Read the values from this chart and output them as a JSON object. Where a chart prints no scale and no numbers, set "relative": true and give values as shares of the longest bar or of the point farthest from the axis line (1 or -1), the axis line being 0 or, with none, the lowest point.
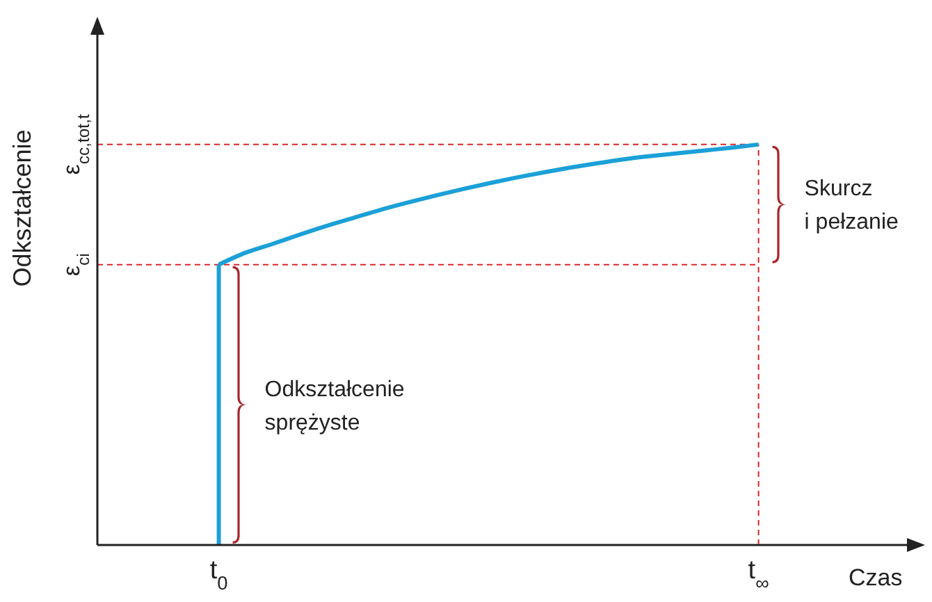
{
  "chart_data": {
    "type": "line",
    "relative": true,
    "xlabel": "Czas",
    "ylabel": "Odkształcenie",
    "categories": [
      null,
      null,
      null,
      null,
      "t$_{0}$",
      null,
      null,
      null,
      null,
      null,
      null,
      null,
      null,
      null,
      null,
      null,
      null,
      null,
      null,
      null,
      null,
      null,
      null,
      null,
      "t$_{∞}$",
      null,
      null,
      null,
      null,
      null
    ],
    "series": [
      {
        "color": "#1ba0d8",
        "x": [
          "t$_{0}$",
          "t$_{0}$"
        ],
        "values": [
          0,
          0.7
        ]
      },
      {
        "color": "#1ba0d8",
        "values": [
          null,
          null,
          null,
          null,
          0.7,
          0.73,
          0.752,
          0.775,
          0.797,
          0.817,
          0.837,
          0.855,
          0.872,
          0.888,
          0.903,
          0.917,
          0.93,
          0.942,
          0.953,
          0.963,
          0.971,
          0.978,
          0.985,
          0.992,
          1,
          null,
          null,
          null,
          null,
          null
        ]
      }
    ],
    "ref_lines": [
      {
        "axis": "y",
        "value": 0.7,
        "label": "ε$_{ci}$",
        "color": "#d9262c",
        "line_style": "dashed"
      },
      {
        "axis": "y",
        "value": 1,
        "label": "ε$_{cc,tot,t}$",
        "color": "#d9262c",
        "line_style": "dashed"
      },
      {
        "axis": "x",
        "value": "t$_{∞}$",
        "color": "#d9262c",
        "line_style": "dashed"
      }
    ],
    "annotations": [
      {
        "text": "Odkształcenie\nsprężyste",
        "x": "t$_{0}$",
        "y": 0.35
      },
      {
        "text": "Skurcz\ni pełzanie",
        "x": "t$_{∞}$",
        "y": 0.85
      }
    ]
  }
}
